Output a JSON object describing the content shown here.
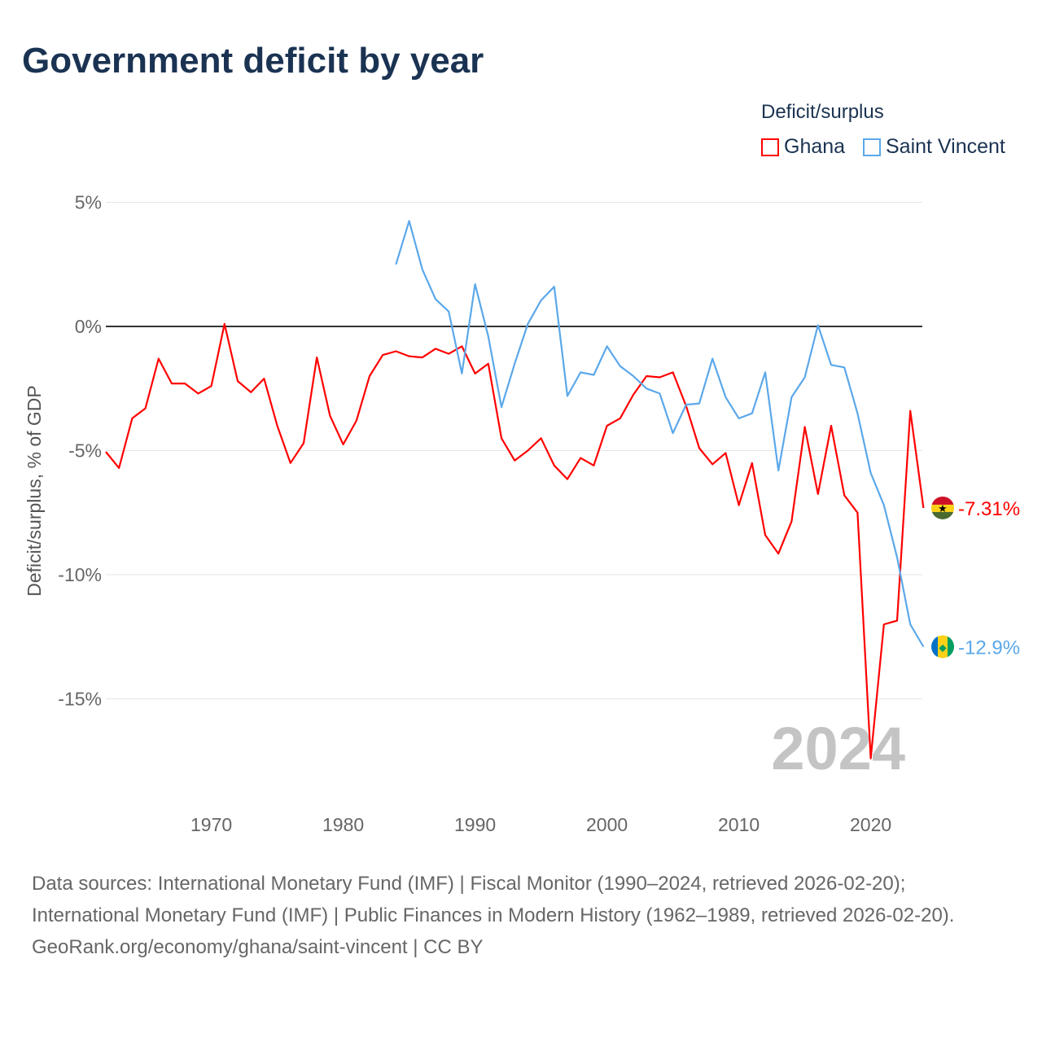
{
  "title": "Government deficit by year",
  "legend": {
    "title": "Deficit/surplus"
  },
  "year_watermark": "2024",
  "footer": {
    "sources": "Data sources: International Monetary Fund (IMF) | Fiscal Monitor (1990–2024, retrieved 2026-02-20); International Monetary Fund (IMF) | Public Finances in Modern History (1962–1989, retrieved 2026-02-20).",
    "credit": "GeoRank.org/economy/ghana/saint-vincent | CC BY"
  },
  "chart_data": {
    "type": "line",
    "title": "Government deficit by year",
    "xlabel": "",
    "ylabel": "Deficit/surplus, % of GDP",
    "xlim": [
      1962,
      2024
    ],
    "ylim": [
      -17.5,
      5
    ],
    "x_ticks": [
      1970,
      1980,
      1990,
      2000,
      2010,
      2020
    ],
    "y_ticks": [
      5,
      0,
      -5,
      -10,
      -15
    ],
    "y_tick_labels": [
      "5%",
      "0%",
      "-5%",
      "-10%",
      "-15%"
    ],
    "grid": true,
    "legend_position": "top-right",
    "series": [
      {
        "name": "Ghana",
        "color": "#ff0000",
        "end_label": "-7.31%",
        "flag": "ghana-flag",
        "start_year": 1962,
        "values": [
          -5.05,
          -5.7,
          -3.7,
          -3.3,
          -1.3,
          -2.3,
          -2.3,
          -2.7,
          -2.4,
          0.1,
          -2.2,
          -2.65,
          -2.1,
          -4.0,
          -5.5,
          -4.7,
          -1.25,
          -3.6,
          -4.75,
          -3.8,
          -2.0,
          -1.15,
          -1.0,
          -1.2,
          -1.25,
          -0.9,
          -1.1,
          -0.8,
          -1.9,
          -1.5,
          -4.5,
          -5.4,
          -5.0,
          -4.5,
          -5.6,
          -6.15,
          -5.3,
          -5.6,
          -4.0,
          -3.7,
          -2.75,
          -2.0,
          -2.05,
          -1.85,
          -3.2,
          -4.9,
          -5.55,
          -5.1,
          -7.2,
          -5.5,
          -8.4,
          -9.15,
          -7.85,
          -4.05,
          -6.75,
          -4.0,
          -6.8,
          -7.5,
          -17.4,
          -12.0,
          -11.85,
          -3.4,
          -7.31
        ]
      },
      {
        "name": "Saint Vincent",
        "color": "#5ba8ea",
        "end_label": "-12.9%",
        "flag": "saint-vincent-flag",
        "start_year": 1984,
        "values": [
          2.5,
          4.25,
          2.3,
          1.1,
          0.6,
          -1.9,
          1.7,
          -0.4,
          -3.25,
          -1.5,
          0.1,
          1.05,
          1.6,
          -2.8,
          -1.85,
          -1.95,
          -0.8,
          -1.6,
          -2.0,
          -2.5,
          -2.7,
          -4.3,
          -3.15,
          -3.1,
          -1.3,
          -2.85,
          -3.7,
          -3.5,
          -1.85,
          -5.8,
          -2.85,
          -2.05,
          0.05,
          -1.55,
          -1.65,
          -3.5,
          -5.9,
          -7.2,
          -9.3,
          -12.0,
          -12.9
        ]
      }
    ]
  }
}
